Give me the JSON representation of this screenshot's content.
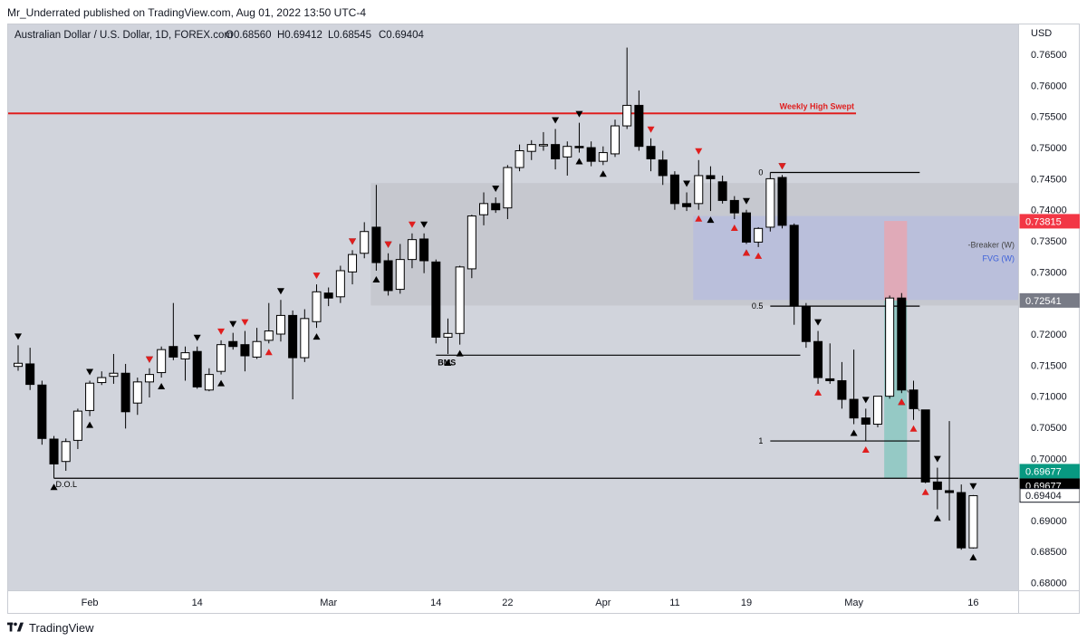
{
  "header": {
    "published_line": "Mr_Underrated published on TradingView.com, Aug 01, 2022 13:50 UTC-4",
    "symbol_line": "Australian Dollar / U.S. Dollar, 1D, FOREX.com",
    "ohlc": {
      "open": "O0.68560",
      "high": "H0.69412",
      "low": "L0.68545",
      "close": "C0.69404"
    }
  },
  "footer": {
    "brand": "TradingView"
  },
  "chart_data": {
    "type": "candlestick",
    "currency": "USD",
    "colors": {
      "plot_bg": "#d1d4dc",
      "up_body": "#ffffff",
      "down_body": "#000000",
      "line_red": "#e01e1e",
      "premium_box": "#c4c5cc",
      "fvg_box": "#b8bedb",
      "red_zone": "#e4a7b4",
      "teal_zone": "#8ec8c2"
    },
    "y_range": [
      0.6795,
      0.7672
    ],
    "y_ticks": [
      "0.76500",
      "0.76000",
      "0.75500",
      "0.75000",
      "0.74500",
      "0.74000",
      "0.73500",
      "0.73000",
      "0.72500",
      "0.72000",
      "0.71500",
      "0.71000",
      "0.70500",
      "0.70000",
      "0.69500",
      "0.69000",
      "0.68500",
      "0.68000"
    ],
    "x_labels": [
      "Feb",
      "14",
      "Mar",
      "14",
      "22",
      "Apr",
      "11",
      "19",
      "May",
      "16"
    ],
    "candles": [
      {
        "d": "2022-01-24",
        "o": 0.7148,
        "h": 0.7182,
        "l": 0.7141,
        "c": 0.7153
      },
      {
        "d": "2022-01-25",
        "o": 0.7152,
        "h": 0.7178,
        "l": 0.711,
        "c": 0.7119
      },
      {
        "d": "2022-01-26",
        "o": 0.7118,
        "h": 0.7125,
        "l": 0.7022,
        "c": 0.7032
      },
      {
        "d": "2022-01-27",
        "o": 0.7031,
        "h": 0.7036,
        "l": 0.6968,
        "c": 0.6991
      },
      {
        "d": "2022-01-28",
        "o": 0.6995,
        "h": 0.7032,
        "l": 0.698,
        "c": 0.7027
      },
      {
        "d": "2022-01-31",
        "o": 0.7029,
        "h": 0.708,
        "l": 0.7015,
        "c": 0.7076
      },
      {
        "d": "2022-02-01",
        "o": 0.7077,
        "h": 0.7125,
        "l": 0.7068,
        "c": 0.7121
      },
      {
        "d": "2022-02-02",
        "o": 0.7122,
        "h": 0.714,
        "l": 0.7118,
        "c": 0.713
      },
      {
        "d": "2022-02-03",
        "o": 0.7132,
        "h": 0.7168,
        "l": 0.712,
        "c": 0.7137
      },
      {
        "d": "2022-02-04",
        "o": 0.7137,
        "h": 0.7152,
        "l": 0.7048,
        "c": 0.7075
      },
      {
        "d": "2022-02-07",
        "o": 0.7089,
        "h": 0.713,
        "l": 0.707,
        "c": 0.7123
      },
      {
        "d": "2022-02-08",
        "o": 0.7123,
        "h": 0.7145,
        "l": 0.7098,
        "c": 0.7135
      },
      {
        "d": "2022-02-09",
        "o": 0.7138,
        "h": 0.718,
        "l": 0.713,
        "c": 0.7175
      },
      {
        "d": "2022-02-10",
        "o": 0.718,
        "h": 0.725,
        "l": 0.7158,
        "c": 0.7163
      },
      {
        "d": "2022-02-11",
        "o": 0.716,
        "h": 0.718,
        "l": 0.7125,
        "c": 0.717
      },
      {
        "d": "2022-02-14",
        "o": 0.7172,
        "h": 0.718,
        "l": 0.7112,
        "c": 0.7115
      },
      {
        "d": "2022-02-15",
        "o": 0.711,
        "h": 0.7145,
        "l": 0.7108,
        "c": 0.7135
      },
      {
        "d": "2022-02-16",
        "o": 0.714,
        "h": 0.719,
        "l": 0.7135,
        "c": 0.7183
      },
      {
        "d": "2022-02-17",
        "o": 0.7188,
        "h": 0.7202,
        "l": 0.7175,
        "c": 0.718
      },
      {
        "d": "2022-02-18",
        "o": 0.7183,
        "h": 0.7205,
        "l": 0.714,
        "c": 0.7165
      },
      {
        "d": "2022-02-21",
        "o": 0.7163,
        "h": 0.721,
        "l": 0.716,
        "c": 0.7188
      },
      {
        "d": "2022-02-22",
        "o": 0.719,
        "h": 0.725,
        "l": 0.7185,
        "c": 0.7205
      },
      {
        "d": "2022-02-23",
        "o": 0.72,
        "h": 0.7255,
        "l": 0.7188,
        "c": 0.723
      },
      {
        "d": "2022-02-24",
        "o": 0.723,
        "h": 0.7238,
        "l": 0.7095,
        "c": 0.7162
      },
      {
        "d": "2022-02-25",
        "o": 0.7162,
        "h": 0.724,
        "l": 0.7155,
        "c": 0.7225
      },
      {
        "d": "2022-02-28",
        "o": 0.722,
        "h": 0.728,
        "l": 0.721,
        "c": 0.7268
      },
      {
        "d": "2022-03-01",
        "o": 0.7266,
        "h": 0.7275,
        "l": 0.7245,
        "c": 0.7258
      },
      {
        "d": "2022-03-02",
        "o": 0.726,
        "h": 0.731,
        "l": 0.725,
        "c": 0.7302
      },
      {
        "d": "2022-03-03",
        "o": 0.73,
        "h": 0.7335,
        "l": 0.728,
        "c": 0.7328
      },
      {
        "d": "2022-03-04",
        "o": 0.733,
        "h": 0.738,
        "l": 0.7322,
        "c": 0.7365
      },
      {
        "d": "2022-03-07",
        "o": 0.7372,
        "h": 0.744,
        "l": 0.7302,
        "c": 0.7315
      },
      {
        "d": "2022-03-08",
        "o": 0.7318,
        "h": 0.733,
        "l": 0.7262,
        "c": 0.727
      },
      {
        "d": "2022-03-09",
        "o": 0.7272,
        "h": 0.7345,
        "l": 0.7265,
        "c": 0.732
      },
      {
        "d": "2022-03-10",
        "o": 0.732,
        "h": 0.7362,
        "l": 0.7306,
        "c": 0.7352
      },
      {
        "d": "2022-03-11",
        "o": 0.7353,
        "h": 0.7362,
        "l": 0.7298,
        "c": 0.7318
      },
      {
        "d": "2022-03-14",
        "o": 0.7316,
        "h": 0.732,
        "l": 0.7185,
        "c": 0.7195
      },
      {
        "d": "2022-03-15",
        "o": 0.7195,
        "h": 0.7225,
        "l": 0.7168,
        "c": 0.7201
      },
      {
        "d": "2022-03-16",
        "o": 0.7201,
        "h": 0.731,
        "l": 0.7183,
        "c": 0.7308
      },
      {
        "d": "2022-03-17",
        "o": 0.7305,
        "h": 0.7392,
        "l": 0.729,
        "c": 0.739
      },
      {
        "d": "2022-03-18",
        "o": 0.7392,
        "h": 0.7428,
        "l": 0.7375,
        "c": 0.741
      },
      {
        "d": "2022-03-21",
        "o": 0.741,
        "h": 0.742,
        "l": 0.7395,
        "c": 0.74
      },
      {
        "d": "2022-03-22",
        "o": 0.7403,
        "h": 0.7472,
        "l": 0.7385,
        "c": 0.7468
      },
      {
        "d": "2022-03-23",
        "o": 0.7468,
        "h": 0.7505,
        "l": 0.7462,
        "c": 0.7495
      },
      {
        "d": "2022-03-24",
        "o": 0.7494,
        "h": 0.7512,
        "l": 0.748,
        "c": 0.7505
      },
      {
        "d": "2022-03-25",
        "o": 0.7505,
        "h": 0.7525,
        "l": 0.7495,
        "c": 0.7505
      },
      {
        "d": "2022-03-28",
        "o": 0.7505,
        "h": 0.753,
        "l": 0.7465,
        "c": 0.7482
      },
      {
        "d": "2022-03-29",
        "o": 0.7485,
        "h": 0.751,
        "l": 0.7455,
        "c": 0.7502
      },
      {
        "d": "2022-03-30",
        "o": 0.7502,
        "h": 0.754,
        "l": 0.7492,
        "c": 0.75
      },
      {
        "d": "2022-03-31",
        "o": 0.75,
        "h": 0.751,
        "l": 0.747,
        "c": 0.7478
      },
      {
        "d": "2022-04-01",
        "o": 0.7478,
        "h": 0.7502,
        "l": 0.7472,
        "c": 0.7492
      },
      {
        "d": "2022-04-04",
        "o": 0.749,
        "h": 0.7545,
        "l": 0.7485,
        "c": 0.7535
      },
      {
        "d": "2022-04-05",
        "o": 0.7535,
        "h": 0.7661,
        "l": 0.753,
        "c": 0.7568
      },
      {
        "d": "2022-04-06",
        "o": 0.7568,
        "h": 0.7592,
        "l": 0.7495,
        "c": 0.7502
      },
      {
        "d": "2022-04-07",
        "o": 0.7502,
        "h": 0.7515,
        "l": 0.7462,
        "c": 0.7482
      },
      {
        "d": "2022-04-08",
        "o": 0.748,
        "h": 0.7495,
        "l": 0.744,
        "c": 0.7455
      },
      {
        "d": "2022-04-11",
        "o": 0.7456,
        "h": 0.7462,
        "l": 0.74,
        "c": 0.741
      },
      {
        "d": "2022-04-12",
        "o": 0.741,
        "h": 0.7428,
        "l": 0.7398,
        "c": 0.7405
      },
      {
        "d": "2022-04-13",
        "o": 0.741,
        "h": 0.748,
        "l": 0.74,
        "c": 0.7455
      },
      {
        "d": "2022-04-14",
        "o": 0.7455,
        "h": 0.747,
        "l": 0.7398,
        "c": 0.745
      },
      {
        "d": "2022-04-15",
        "o": 0.7445,
        "h": 0.7455,
        "l": 0.741,
        "c": 0.7415
      },
      {
        "d": "2022-04-18",
        "o": 0.7415,
        "h": 0.7422,
        "l": 0.7385,
        "c": 0.7395
      },
      {
        "d": "2022-04-19",
        "o": 0.7395,
        "h": 0.74,
        "l": 0.7345,
        "c": 0.7348
      },
      {
        "d": "2022-04-20",
        "o": 0.7348,
        "h": 0.7372,
        "l": 0.734,
        "c": 0.737
      },
      {
        "d": "2022-04-21",
        "o": 0.7372,
        "h": 0.746,
        "l": 0.7365,
        "c": 0.745
      },
      {
        "d": "2022-04-22",
        "o": 0.7452,
        "h": 0.7456,
        "l": 0.737,
        "c": 0.7375
      },
      {
        "d": "2022-04-25",
        "o": 0.7375,
        "h": 0.7378,
        "l": 0.7215,
        "c": 0.7245
      },
      {
        "d": "2022-04-26",
        "o": 0.7245,
        "h": 0.725,
        "l": 0.7178,
        "c": 0.7188
      },
      {
        "d": "2022-04-27",
        "o": 0.7188,
        "h": 0.7205,
        "l": 0.712,
        "c": 0.713
      },
      {
        "d": "2022-04-28",
        "o": 0.7128,
        "h": 0.7185,
        "l": 0.712,
        "c": 0.7125
      },
      {
        "d": "2022-04-29",
        "o": 0.7125,
        "h": 0.7155,
        "l": 0.708,
        "c": 0.7095
      },
      {
        "d": "2022-05-02",
        "o": 0.7095,
        "h": 0.7175,
        "l": 0.7055,
        "c": 0.7065
      },
      {
        "d": "2022-05-03",
        "o": 0.7065,
        "h": 0.708,
        "l": 0.7028,
        "c": 0.7055
      },
      {
        "d": "2022-05-04",
        "o": 0.7055,
        "h": 0.71,
        "l": 0.705,
        "c": 0.71
      },
      {
        "d": "2022-05-05",
        "o": 0.71,
        "h": 0.7262,
        "l": 0.7096,
        "c": 0.7258
      },
      {
        "d": "2022-05-06",
        "o": 0.7258,
        "h": 0.7266,
        "l": 0.7105,
        "c": 0.711
      },
      {
        "d": "2022-05-09",
        "o": 0.711,
        "h": 0.7125,
        "l": 0.7062,
        "c": 0.708
      },
      {
        "d": "2022-05-10",
        "o": 0.7078,
        "h": 0.7078,
        "l": 0.696,
        "c": 0.6962
      },
      {
        "d": "2022-05-11",
        "o": 0.6962,
        "h": 0.6985,
        "l": 0.6918,
        "c": 0.695
      },
      {
        "d": "2022-05-12",
        "o": 0.6948,
        "h": 0.706,
        "l": 0.69,
        "c": 0.6945
      },
      {
        "d": "2022-05-13",
        "o": 0.6945,
        "h": 0.6958,
        "l": 0.6853,
        "c": 0.6856
      },
      {
        "d": "2022-05-16",
        "o": 0.6856,
        "h": 0.6941,
        "l": 0.6855,
        "c": 0.694
      }
    ],
    "levels": [
      {
        "name": "Weekly High Swept",
        "price": 0.7555,
        "from": "2022-01-24",
        "to": "2022-05-06",
        "color": "#e01e1e",
        "label": "Weekly High Swept"
      },
      {
        "name": "BMS",
        "price": 0.7166,
        "from": "2022-03-14",
        "to": "2022-04-22",
        "label": "BMS"
      },
      {
        "name": "D.O.L",
        "price": 0.6968,
        "from": "2022-01-27",
        "to": "2022-05-17",
        "label": "D.O.L"
      },
      {
        "name": "fib-0",
        "price": 0.746,
        "from": "2022-04-21",
        "to": "2022-05-06",
        "label": "0"
      },
      {
        "name": "fib-0.5",
        "price": 0.7245,
        "from": "2022-04-21",
        "to": "2022-05-06",
        "label": "0.5"
      },
      {
        "name": "fib-1",
        "price": 0.7028,
        "from": "2022-04-21",
        "to": "2022-05-06",
        "label": "1"
      }
    ],
    "zones": [
      {
        "name": "premium-zone",
        "top": 0.7443,
        "bottom": 0.7246,
        "from": "2022-03-07",
        "to": "2022-05-17"
      },
      {
        "name": "fvg-zone",
        "top": 0.739,
        "bottom": 0.7255,
        "from": "2022-04-13",
        "to": "2022-05-17",
        "labels": [
          "-Breaker (W)",
          "FVG (W)"
        ]
      },
      {
        "name": "red-zone",
        "top": 0.7382,
        "bottom": 0.7254,
        "from": "2022-05-05",
        "to": "2022-05-06"
      },
      {
        "name": "teal-zone",
        "top": 0.7254,
        "bottom": 0.6968,
        "from": "2022-05-05",
        "to": "2022-05-06"
      }
    ],
    "price_tags": [
      {
        "value": "0.73815",
        "price": 0.73815,
        "bg": "#f23645",
        "fg": "#ffffff"
      },
      {
        "value": "0.72541",
        "price": 0.72541,
        "bg": "#787b86",
        "fg": "#ffffff"
      },
      {
        "value": "0.69677",
        "price": 0.69677,
        "bg": "#089981",
        "fg": "#ffffff",
        "offset": -8
      },
      {
        "value": "0.69677",
        "price": 0.69677,
        "bg": "#000000",
        "fg": "#ffffff",
        "offset": 8
      },
      {
        "value": "0.69404",
        "price": 0.69404,
        "bg": "#ffffff",
        "fg": "#131722",
        "border": "#131722"
      }
    ],
    "markers": {
      "black_down": [
        0,
        6,
        11,
        15,
        18,
        22,
        28,
        31,
        34,
        40,
        45,
        47,
        56,
        61,
        64,
        67,
        71,
        77,
        80
      ],
      "black_up": [
        3,
        6,
        12,
        17,
        25,
        30,
        36,
        37,
        47,
        49,
        58,
        61,
        70,
        74,
        77,
        80
      ],
      "red_down": [
        3,
        9,
        11,
        17,
        20,
        23,
        25,
        45,
        49,
        56
      ],
      "red_up": [
        1,
        37,
        40,
        41,
        42,
        47,
        51,
        54,
        55,
        56,
        63
      ]
    }
  }
}
